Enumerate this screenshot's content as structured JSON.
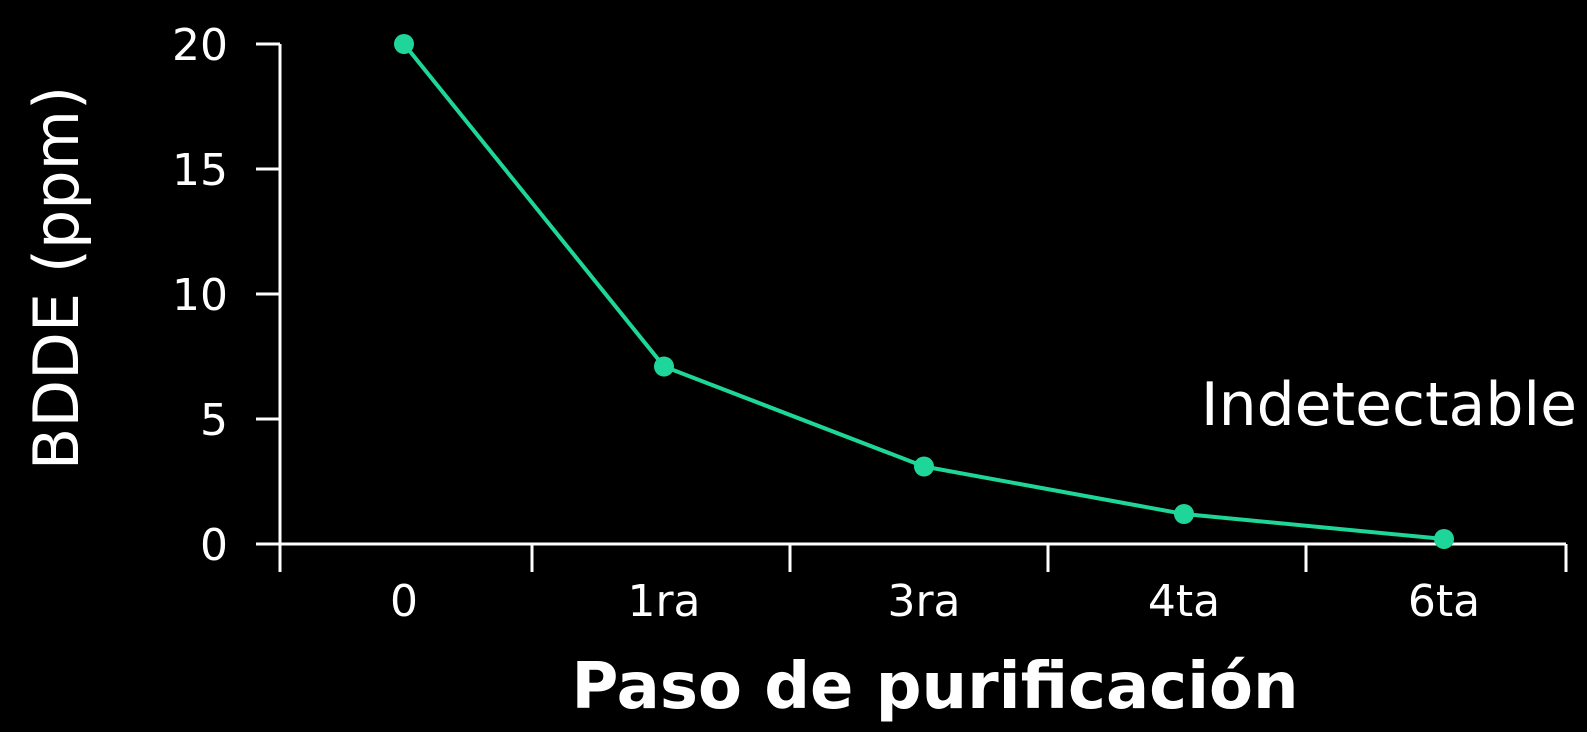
{
  "chart_data": {
    "type": "line",
    "categories": [
      "0",
      "1ra",
      "3ra",
      "4ta",
      "6ta"
    ],
    "series": [
      {
        "values": [
          20,
          7.1,
          3.1,
          1.2,
          0.2
        ]
      }
    ],
    "xlabel": "Paso de purificación",
    "ylabel": "BDDE (ppm)",
    "ylim": [
      0,
      20
    ],
    "yticks": [
      "0",
      "5",
      "10",
      "15",
      "20"
    ],
    "annotations": [
      {
        "text": "Indetectable"
      }
    ],
    "grid": false,
    "colors": {
      "background": "#000000",
      "axis": "#ffffff",
      "line": "#1ed699",
      "text": "#ffffff"
    }
  }
}
